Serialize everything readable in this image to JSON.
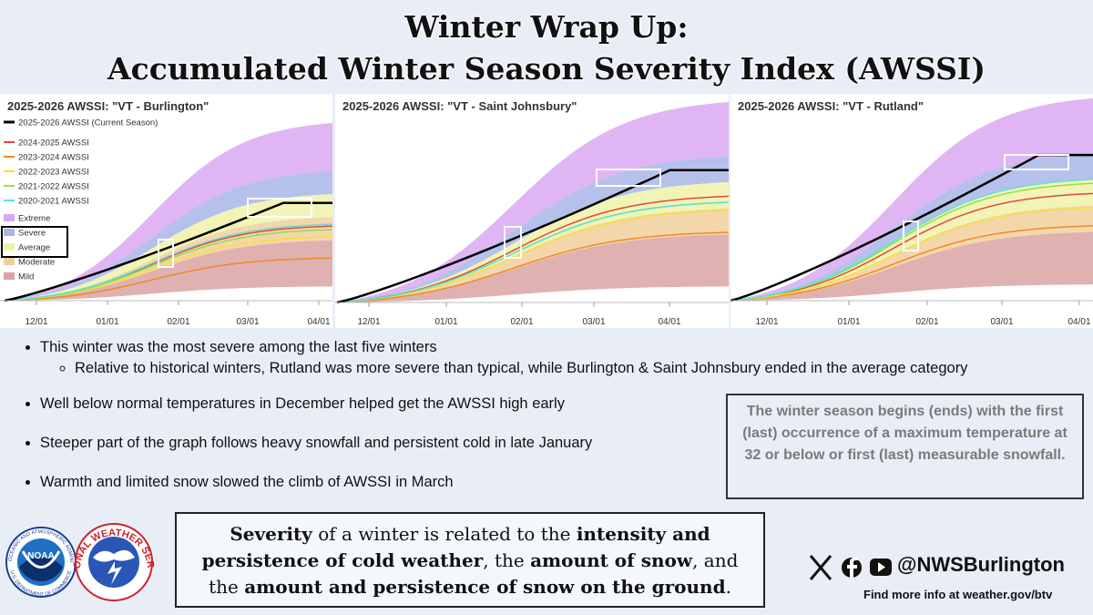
{
  "header": {
    "title_line1": "Winter Wrap Up:",
    "title_line2": "Accumulated Winter Season Severity Index (AWSSI)"
  },
  "panels": [
    {
      "title": "2025-2026 AWSSI: \"VT - Burlington\"",
      "x_labels": [
        "12/01",
        "01/01",
        "02/01",
        "03/01",
        "04/01"
      ]
    },
    {
      "title": "2025-2026 AWSSI: \"VT - Saint Johnsbury\"",
      "x_labels": [
        "12/01",
        "01/01",
        "02/01",
        "03/01",
        "04/01"
      ]
    },
    {
      "title": "2025-2026 AWSSI: \"VT - Rutland\"",
      "x_labels": [
        "12/01",
        "01/01",
        "02/01",
        "03/01",
        "04/01"
      ]
    }
  ],
  "legend": {
    "lines": [
      {
        "name": "2025-2026 AWSSI (Current Season)",
        "color": "#000000"
      },
      {
        "name": "2024-2025 AWSSI",
        "color": "#e8453c"
      },
      {
        "name": "2023-2024 AWSSI",
        "color": "#f08a24"
      },
      {
        "name": "2022-2023 AWSSI",
        "color": "#f2e23a"
      },
      {
        "name": "2021-2022 AWSSI",
        "color": "#8fe04a"
      },
      {
        "name": "2020-2021 AWSSI",
        "color": "#5fe0d8"
      }
    ],
    "bands": [
      {
        "name": "Extreme",
        "color": "#d9a8f2"
      },
      {
        "name": "Severe",
        "color": "#a9b6e8"
      },
      {
        "name": "Average",
        "color": "#eef2a8"
      },
      {
        "name": "Moderate",
        "color": "#f2cf9c"
      },
      {
        "name": "Mild",
        "color": "#dba3a3"
      }
    ]
  },
  "bullets": [
    {
      "text": "This winter was the most severe among the last five winters",
      "sub": [
        "Relative to historical winters, Rutland was more severe than typical, while Burlington & Saint Johnsbury ended in the average category"
      ]
    },
    {
      "text": "Well below normal temperatures in December helped get the AWSSI high early"
    },
    {
      "text": "Steeper part of the graph follows heavy snowfall and persistent cold in late January"
    },
    {
      "text": "Warmth and limited snow slowed the climb of AWSSI in March"
    }
  ],
  "note": "The winter season begins (ends) with the first (last) occurrence of a maximum temperature at 32 or below or first (last) measurable snowfall.",
  "severity": [
    {
      "text": "Severity",
      "bold": true
    },
    {
      "text": " of a winter is related to the ",
      "bold": false
    },
    {
      "text": "intensity and persistence of cold weather",
      "bold": true
    },
    {
      "text": ", the ",
      "bold": false
    },
    {
      "text": "amount of snow",
      "bold": true
    },
    {
      "text": ", and the ",
      "bold": false
    },
    {
      "text": "amount and persistence of snow on the ground",
      "bold": true
    },
    {
      "text": ".",
      "bold": false
    }
  ],
  "logos": {
    "noaa": "NOAA",
    "noaa_ring_top": "NATIONAL OCEANIC AND ATMOSPHERIC ADMINISTRATION",
    "noaa_ring_bottom": "U.S. DEPARTMENT OF COMMERCE",
    "nws_ring": "NATIONAL WEATHER SERVICE"
  },
  "social": {
    "handle": "@NWSBurlington",
    "more": "Find more info at weather.gov/btv"
  }
}
